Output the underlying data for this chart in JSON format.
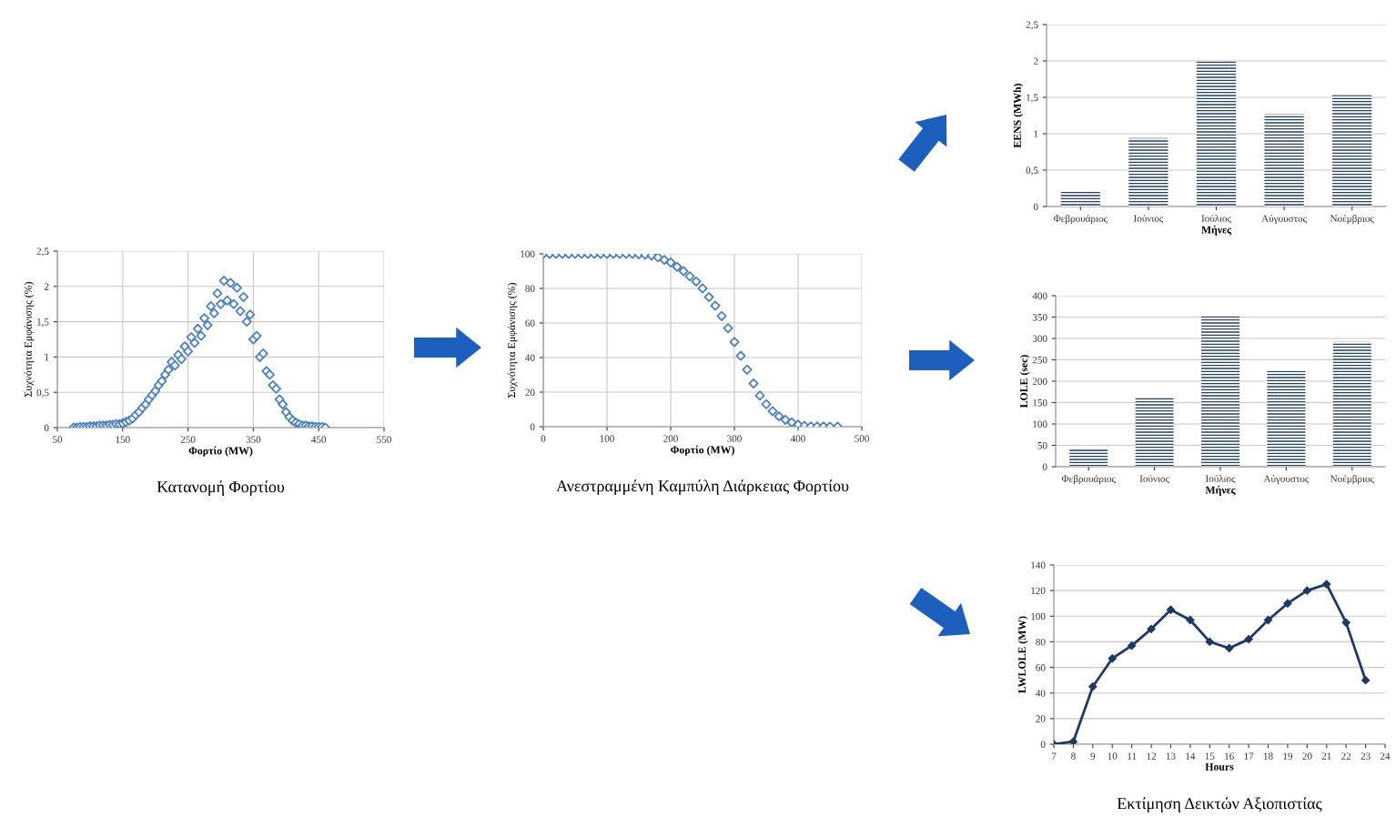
{
  "chart_data": [
    {
      "type": "scatter",
      "title": "Κατανομή Φορτίου",
      "xlabel": "Φορτίο (MW)",
      "ylabel": "Συχνότητα Εμφάνισης (%)",
      "marker": "diamond",
      "grid": true,
      "x": [
        75,
        80,
        85,
        90,
        95,
        100,
        105,
        110,
        115,
        120,
        125,
        130,
        135,
        140,
        145,
        150,
        155,
        160,
        165,
        170,
        175,
        180,
        185,
        190,
        195,
        200,
        205,
        210,
        215,
        220,
        225,
        230,
        235,
        240,
        245,
        250,
        255,
        260,
        265,
        270,
        275,
        280,
        285,
        290,
        295,
        300,
        305,
        310,
        315,
        320,
        325,
        330,
        335,
        340,
        345,
        350,
        355,
        360,
        365,
        370,
        375,
        380,
        385,
        390,
        395,
        400,
        405,
        410,
        415,
        420,
        425,
        430,
        435,
        440,
        445,
        450,
        455,
        460
      ],
      "series": [
        {
          "color": "#4f81bd",
          "values": [
            0,
            0,
            0.01,
            0.01,
            0.01,
            0.02,
            0.02,
            0.02,
            0.03,
            0.03,
            0.03,
            0.04,
            0.04,
            0.05,
            0.05,
            0.06,
            0.08,
            0.1,
            0.13,
            0.18,
            0.22,
            0.28,
            0.33,
            0.4,
            0.46,
            0.52,
            0.6,
            0.66,
            0.75,
            0.82,
            0.93,
            0.88,
            1.03,
            0.97,
            1.15,
            1.08,
            1.28,
            1.2,
            1.4,
            1.3,
            1.55,
            1.45,
            1.72,
            1.62,
            1.9,
            1.75,
            2.08,
            1.8,
            2.05,
            1.75,
            1.98,
            1.65,
            1.85,
            1.5,
            1.6,
            1.25,
            1.3,
            1.0,
            1.05,
            0.8,
            0.75,
            0.6,
            0.55,
            0.4,
            0.33,
            0.22,
            0.15,
            0.1,
            0.07,
            0.05,
            0.03,
            0.03,
            0.02,
            0.02,
            0.01,
            0.01,
            0.01,
            0
          ]
        }
      ],
      "xlim": [
        50,
        550
      ],
      "xticks": [
        50,
        150,
        250,
        350,
        450,
        550
      ],
      "ylim": [
        0,
        2.5
      ],
      "yticks": [
        0,
        {
          "value": 0.5,
          "label": "0,5"
        },
        1,
        {
          "value": 1.5,
          "label": "1,5"
        },
        2,
        {
          "value": 2.5,
          "label": "2,5"
        }
      ]
    },
    {
      "type": "scatter",
      "title": "Ανεστραμμένη Καμπύλη Διάρκειας Φορτίου",
      "xlabel": "Φορτίο (MW)",
      "ylabel": "Συχνότητα Εμφάνισης (%)",
      "marker": "diamond",
      "grid": true,
      "x": [
        0,
        10,
        20,
        30,
        40,
        50,
        60,
        70,
        80,
        90,
        100,
        110,
        120,
        130,
        140,
        150,
        160,
        170,
        180,
        190,
        200,
        210,
        220,
        230,
        240,
        250,
        260,
        270,
        280,
        290,
        300,
        310,
        320,
        330,
        340,
        350,
        360,
        370,
        380,
        390,
        400,
        410,
        420,
        430,
        440,
        450,
        462
      ],
      "series": [
        {
          "color": "#4f81bd",
          "values": [
            100,
            100,
            100,
            100,
            100,
            100,
            100,
            100,
            100,
            100,
            100,
            100,
            100,
            100,
            100,
            99.7,
            99.5,
            99,
            98,
            96.5,
            95,
            92.5,
            90,
            87,
            84,
            80,
            75,
            70,
            64,
            57,
            49,
            41,
            33,
            25,
            18,
            13,
            9,
            6,
            4,
            2.5,
            1.2,
            0.5,
            0.2,
            0.1,
            0.1,
            0,
            0
          ]
        }
      ],
      "xlim": [
        0,
        500
      ],
      "xticks": [
        0,
        100,
        200,
        300,
        400,
        500
      ],
      "ylim": [
        0,
        100
      ],
      "yticks": [
        0,
        20,
        40,
        60,
        80,
        100
      ]
    },
    {
      "type": "bar",
      "xlabel": "Μήνες",
      "ylabel": "EENS (MWh)",
      "grid": "y",
      "categories": [
        "Φεβρουάριος",
        "Ιούνιος",
        "Ιούλιος",
        "Αύγουστος",
        "Νοέμβριος"
      ],
      "series": [
        {
          "color": "#243f60",
          "values": [
            0.22,
            0.94,
            2.0,
            1.27,
            1.53
          ]
        }
      ],
      "ylim": [
        0,
        2.5
      ],
      "yticks": [
        0,
        {
          "value": 0.5,
          "label": "0,5"
        },
        1,
        {
          "value": 1.5,
          "label": "1,5"
        },
        2,
        {
          "value": 2.5,
          "label": "2,5"
        }
      ]
    },
    {
      "type": "bar",
      "xlabel": "Μήνες",
      "ylabel": "LOLE (sec)",
      "grid": "y",
      "categories": [
        "Φεβρουάριος",
        "Ιούνιος",
        "Ιούλιος",
        "Αύγουστος",
        "Νοέμβριος"
      ],
      "series": [
        {
          "color": "#243f60",
          "values": [
            42,
            163,
            352,
            224,
            292
          ]
        }
      ],
      "ylim": [
        0,
        400
      ],
      "yticks": [
        0,
        50,
        100,
        150,
        200,
        250,
        300,
        350,
        400
      ]
    },
    {
      "type": "line",
      "title": "Εκτίμηση Δεικτών Αξιοπιστίας",
      "xlabel": "Hours",
      "ylabel": "LWLOLE (MW)",
      "grid": "y",
      "marker": "diamond",
      "line_style": "solid",
      "x": [
        7,
        8,
        9,
        10,
        11,
        12,
        13,
        14,
        15,
        16,
        17,
        18,
        19,
        20,
        21,
        22,
        23
      ],
      "series": [
        {
          "color": "#1f3864",
          "values": [
            0,
            2,
            45,
            67,
            77,
            90,
            105,
            97,
            80,
            75,
            82,
            97,
            110,
            120,
            125,
            95,
            50
          ]
        }
      ],
      "xlim": [
        7,
        24
      ],
      "xticks": [
        7,
        8,
        9,
        10,
        11,
        12,
        13,
        14,
        15,
        16,
        17,
        18,
        19,
        20,
        21,
        22,
        23,
        24
      ],
      "ylim": [
        0,
        140
      ],
      "yticks": [
        0,
        20,
        40,
        60,
        80,
        100,
        120,
        140
      ]
    }
  ]
}
